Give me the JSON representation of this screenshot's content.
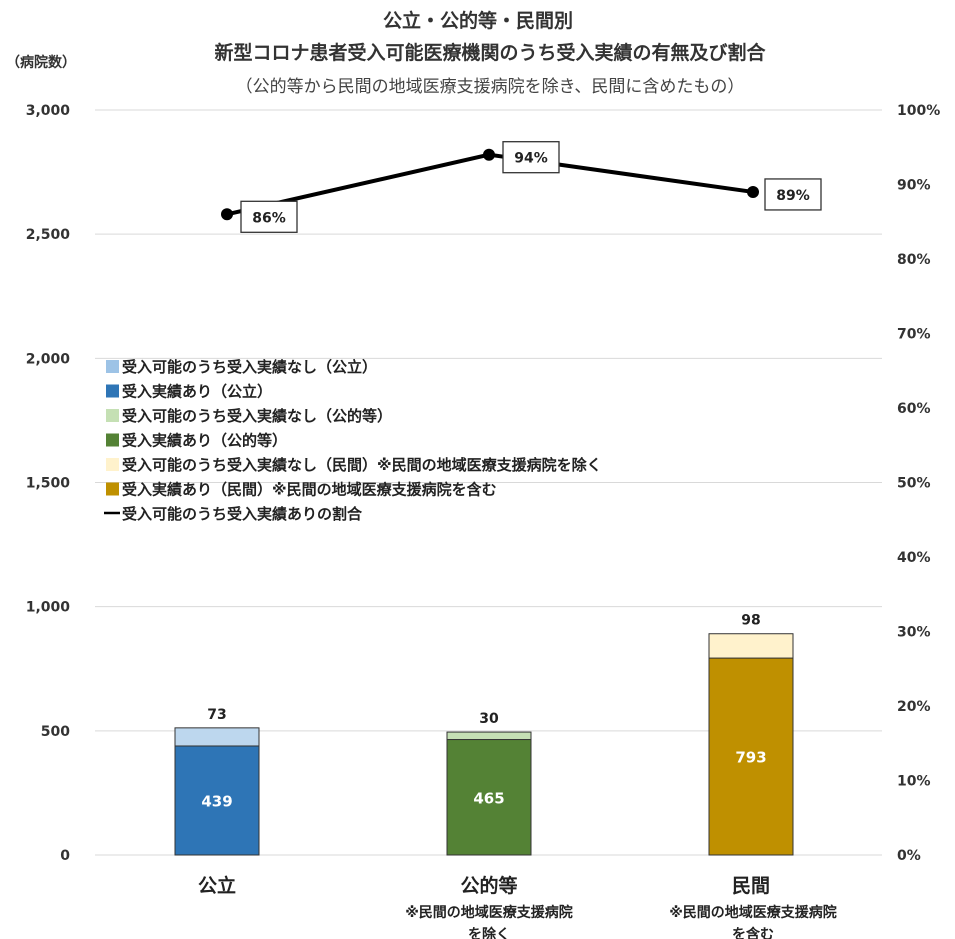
{
  "chart_data": {
    "type": "bar",
    "stacked": true,
    "title": "公立・公的等・民間別",
    "subtitle": "新型コロナ患者受入可能医療機関のうち受入実績の有無及び割合",
    "note": "（公的等から民間の地域医療支援病院を除き、民間に含めたもの）",
    "ylabel": "（病院数）",
    "ylim": [
      0,
      3000
    ],
    "yticks": [
      0,
      500,
      1000,
      1500,
      2000,
      2500,
      3000
    ],
    "ytick_labels": [
      "0",
      "500",
      "1,000",
      "1,500",
      "2,000",
      "2,500",
      "3,000"
    ],
    "y2lim": [
      0,
      100
    ],
    "y2ticks": [
      0,
      10,
      20,
      30,
      40,
      50,
      60,
      70,
      80,
      90,
      100
    ],
    "y2tick_labels": [
      "0%",
      "10%",
      "20%",
      "30%",
      "40%",
      "50%",
      "60%",
      "70%",
      "80%",
      "90%",
      "100%"
    ],
    "grid": true,
    "legend_position": "left-middle",
    "categories": [
      {
        "label": "公立",
        "note": []
      },
      {
        "label": "公的等",
        "note": [
          "※民間の地域医療支援病院",
          "を除く"
        ]
      },
      {
        "label": "民間",
        "note": [
          "※民間の地域医療支援病院",
          "を含む"
        ]
      }
    ],
    "bars": [
      {
        "accepted": 439,
        "not_accepted": 73,
        "accepted_color": "#2e75b6",
        "not_accepted_color": "#bdd7ee"
      },
      {
        "accepted": 465,
        "not_accepted": 30,
        "accepted_color": "#548235",
        "not_accepted_color": "#c5e0b4"
      },
      {
        "accepted": 793,
        "not_accepted": 98,
        "accepted_color": "#bf9000",
        "not_accepted_color": "#fff2cc"
      }
    ],
    "ratio_series": {
      "name": "受入可能のうち受入実績ありの割合",
      "values": [
        86,
        94,
        89
      ],
      "labels": [
        "86%",
        "94%",
        "89%"
      ],
      "color": "#000000"
    },
    "legend": [
      {
        "label": "受入可能のうち受入実績なし（公立）",
        "color": "#9dc3e6",
        "kind": "box"
      },
      {
        "label": "受入実績あり（公立）",
        "color": "#2e75b6",
        "kind": "box"
      },
      {
        "label": "受入可能のうち受入実績なし（公的等）",
        "color": "#c5e0b4",
        "kind": "box"
      },
      {
        "label": "受入実績あり（公的等）",
        "color": "#548235",
        "kind": "box"
      },
      {
        "label": "受入可能のうち受入実績なし（民間）※民間の地域医療支援病院を除く",
        "color": "#fff2cc",
        "kind": "box"
      },
      {
        "label": "受入実績あり（民間）※民間の地域医療支援病院を含む",
        "color": "#bf9000",
        "kind": "box"
      },
      {
        "label": "受入可能のうち受入実績ありの割合",
        "color": "#000000",
        "kind": "line"
      }
    ]
  }
}
